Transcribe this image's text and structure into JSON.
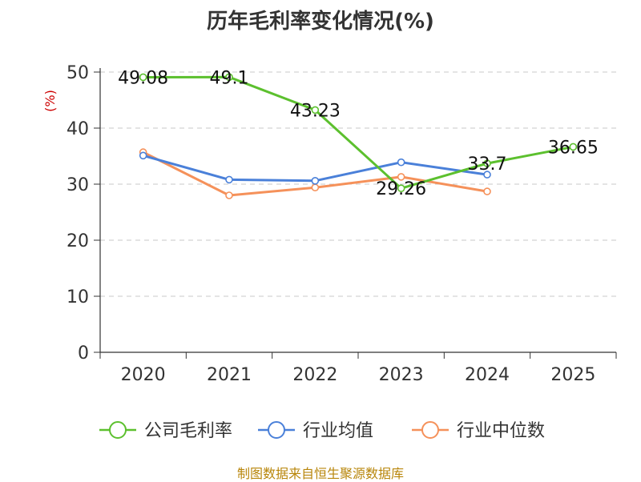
{
  "chart_data": {
    "type": "line",
    "title": "历年毛利率变化情况(%)",
    "ylabel": "(%)",
    "xlabel": "",
    "categories": [
      "2020",
      "2021",
      "2022",
      "2023",
      "2024",
      "2025"
    ],
    "ylim": [
      0,
      50
    ],
    "yticks": [
      "0",
      "10",
      "20",
      "30",
      "40",
      "50"
    ],
    "grid": true,
    "legend_position": "bottom",
    "series": [
      {
        "name": "公司毛利率",
        "color": "#5cc02e",
        "values": [
          49.08,
          49.1,
          43.23,
          29.26,
          33.7,
          36.65
        ],
        "labels": [
          "49.08",
          "49.1",
          "43.23",
          "29.26",
          "33.7",
          "36.65"
        ]
      },
      {
        "name": "行业均值",
        "color": "#4a80d9",
        "values": [
          35.1,
          30.8,
          30.6,
          33.9,
          31.7,
          null
        ],
        "labels": []
      },
      {
        "name": "行业中位数",
        "color": "#f5915a",
        "values": [
          35.7,
          28.0,
          29.4,
          31.3,
          28.7,
          null
        ],
        "labels": []
      }
    ]
  },
  "source": "制图数据来自恒生聚源数据库"
}
